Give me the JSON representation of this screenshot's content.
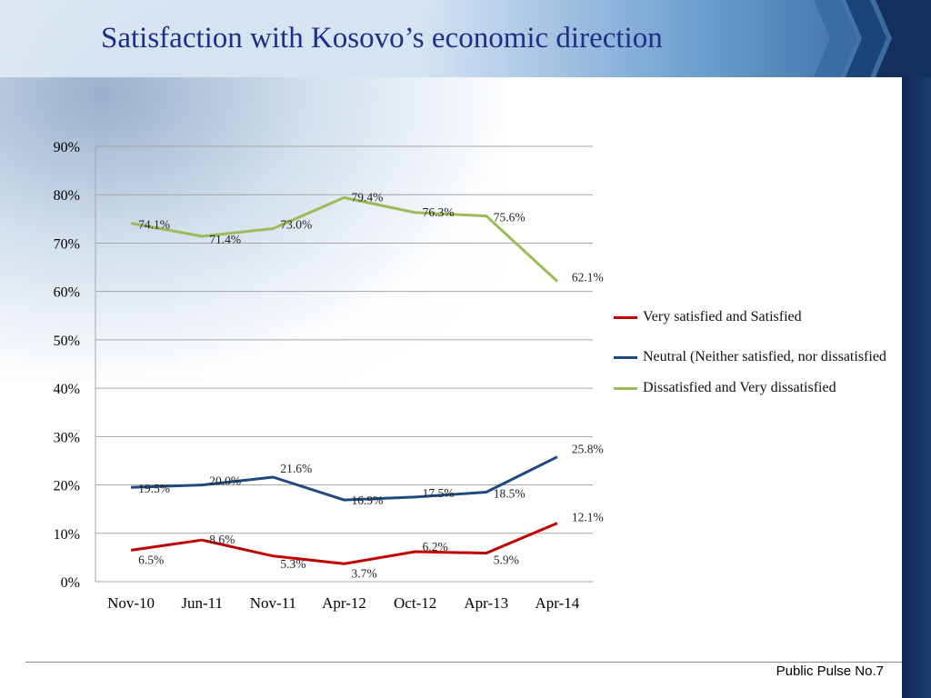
{
  "page": {
    "title": "Satisfaction with Kosovo’s economic direction",
    "footer": "Public Pulse No.7"
  },
  "colors": {
    "red": "#c00000",
    "blue": "#1f497d",
    "green": "#9bbb59",
    "title": "#1f2f86",
    "grid": "#a6a6a6"
  },
  "chart_data": {
    "type": "line",
    "categories": [
      "Nov-10",
      "Jun-11",
      "Nov-11",
      "Apr-12",
      "Oct-12",
      "Apr-13",
      "Apr-14"
    ],
    "ylim": [
      0,
      90
    ],
    "yticks": [
      "0%",
      "10%",
      "20%",
      "30%",
      "40%",
      "50%",
      "60%",
      "70%",
      "80%",
      "90%"
    ],
    "grid": true,
    "legend_position": "right",
    "series": [
      {
        "name": "Very  satisfied and Satisfied",
        "color": "#c00000",
        "values": [
          6.5,
          8.6,
          5.3,
          3.7,
          6.2,
          5.9,
          12.1
        ],
        "labels": [
          "6.5%",
          "8.6%",
          "5.3%",
          "3.7%",
          "6.2%",
          "5.9%",
          "12.1%"
        ]
      },
      {
        "name": "Neutral (Neither satisfied, nor dissatisfied",
        "color": "#1f497d",
        "values": [
          19.5,
          20.0,
          21.6,
          16.9,
          17.5,
          18.5,
          25.8
        ],
        "labels": [
          "19.5%",
          "20.0%",
          "21.6%",
          "16.9%",
          "17.5%",
          "18.5%",
          "25.8%"
        ]
      },
      {
        "name": "Dissatisfied and Very dissatisfied",
        "color": "#9bbb59",
        "values": [
          74.1,
          71.4,
          73.0,
          79.4,
          76.3,
          75.6,
          62.1
        ],
        "labels": [
          "74.1%",
          "71.4%",
          "73.0%",
          "79.4%",
          "76.3%",
          "75.6%",
          "62.1%"
        ]
      }
    ]
  }
}
